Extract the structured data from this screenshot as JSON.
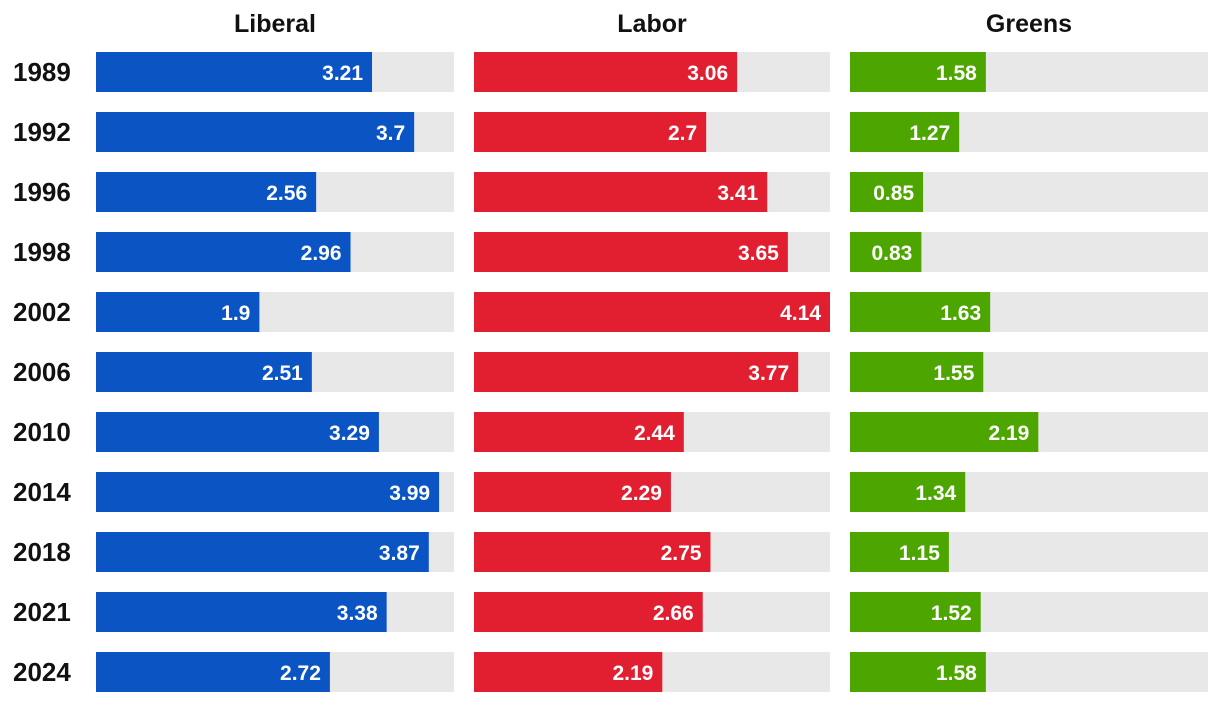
{
  "chart_data": {
    "type": "bar",
    "orientation": "horizontal",
    "layout": "small-multiples",
    "categories": [
      "1989",
      "1992",
      "1996",
      "1998",
      "2002",
      "2006",
      "2010",
      "2014",
      "2018",
      "2021",
      "2024"
    ],
    "xlim": [
      0,
      4.14
    ],
    "grid": false,
    "legend": "none",
    "track_color": "#e8e8e8",
    "label_color": "#ffffff",
    "series": [
      {
        "name": "Liberal",
        "color": "#0a54c4",
        "values": [
          3.21,
          3.7,
          2.56,
          2.96,
          1.9,
          2.51,
          3.29,
          3.99,
          3.87,
          3.38,
          2.72
        ]
      },
      {
        "name": "Labor",
        "color": "#e21f31",
        "values": [
          3.06,
          2.7,
          3.41,
          3.65,
          4.14,
          3.77,
          2.44,
          2.29,
          2.75,
          2.66,
          2.19
        ]
      },
      {
        "name": "Greens",
        "color": "#4da600",
        "values": [
          1.58,
          1.27,
          0.85,
          0.83,
          1.63,
          1.55,
          2.19,
          1.34,
          1.15,
          1.52,
          1.58
        ]
      }
    ]
  }
}
